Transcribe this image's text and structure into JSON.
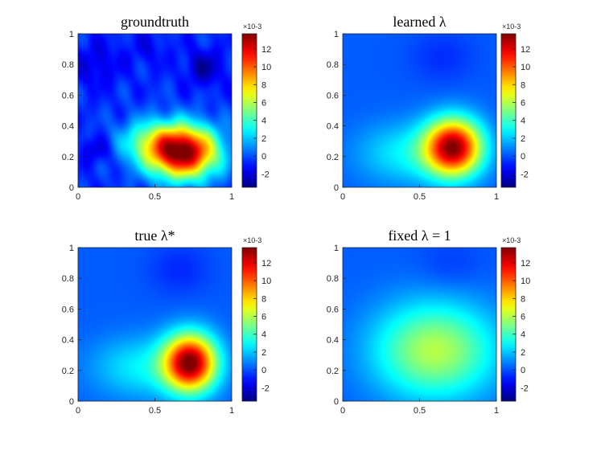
{
  "chart_data": [
    {
      "type": "heatmap",
      "title": "groundtruth",
      "xlim": [
        0,
        1
      ],
      "ylim": [
        0,
        1
      ],
      "xticks": [
        "0",
        "0.5",
        "1"
      ],
      "yticks": [
        "0",
        "0.2",
        "0.4",
        "0.6",
        "0.8",
        "1"
      ],
      "colorbar": {
        "min": -0.0035,
        "max": 0.0137,
        "ticks": [
          "-2",
          "0",
          "2",
          "4",
          "6",
          "8",
          "10",
          "12"
        ],
        "exponent": "×10-3",
        "colormap": "jet"
      },
      "field": {
        "peaks": [
          {
            "x": 0.68,
            "y": 0.23,
            "sx": 0.16,
            "sy": 0.12,
            "a": 0.0145
          },
          {
            "x": 0.45,
            "y": 0.3,
            "sx": 0.14,
            "sy": 0.1,
            "a": 0.0035
          },
          {
            "x": 0.82,
            "y": 0.78,
            "sx": 0.08,
            "sy": 0.08,
            "a": -0.0022
          },
          {
            "x": 0.12,
            "y": 0.8,
            "sx": 0.1,
            "sy": 0.1,
            "a": -0.0013
          },
          {
            "x": 0.12,
            "y": 0.24,
            "sx": 0.07,
            "sy": 0.06,
            "a": -0.0014
          },
          {
            "x": 0.45,
            "y": 0.9,
            "sx": 0.1,
            "sy": 0.08,
            "a": -0.0008
          }
        ],
        "base": -0.0006,
        "texture": 0.0009
      }
    },
    {
      "type": "heatmap",
      "title": "learned λ",
      "xlim": [
        0,
        1
      ],
      "ylim": [
        0,
        1
      ],
      "xticks": [
        "0",
        "0.5",
        "1"
      ],
      "yticks": [
        "0",
        "0.2",
        "0.4",
        "0.6",
        "0.8",
        "1"
      ],
      "colorbar": {
        "min": -0.0035,
        "max": 0.0137,
        "ticks": [
          "-2",
          "0",
          "2",
          "4",
          "6",
          "8",
          "10",
          "12"
        ],
        "exponent": "×10-3",
        "colormap": "jet"
      },
      "field": {
        "peaks": [
          {
            "x": 0.72,
            "y": 0.26,
            "sx": 0.13,
            "sy": 0.13,
            "a": 0.0128
          },
          {
            "x": 0.4,
            "y": 0.22,
            "sx": 0.22,
            "sy": 0.14,
            "a": 0.0025
          },
          {
            "x": 0.65,
            "y": 0.85,
            "sx": 0.15,
            "sy": 0.12,
            "a": -0.0008
          }
        ],
        "base": 0.0002,
        "texture": 0
      }
    },
    {
      "type": "heatmap",
      "title": "true λ*",
      "xlim": [
        0,
        1
      ],
      "ylim": [
        0,
        1
      ],
      "xticks": [
        "0",
        "0.5",
        "1"
      ],
      "yticks": [
        "0",
        "0.2",
        "0.4",
        "0.6",
        "0.8",
        "1"
      ],
      "colorbar": {
        "min": -0.0035,
        "max": 0.0137,
        "ticks": [
          "-2",
          "0",
          "2",
          "4",
          "6",
          "8",
          "10",
          "12"
        ],
        "exponent": "×10-3",
        "colormap": "jet"
      },
      "field": {
        "peaks": [
          {
            "x": 0.73,
            "y": 0.25,
            "sx": 0.12,
            "sy": 0.13,
            "a": 0.0132
          },
          {
            "x": 0.4,
            "y": 0.22,
            "sx": 0.22,
            "sy": 0.14,
            "a": 0.0025
          },
          {
            "x": 0.66,
            "y": 0.86,
            "sx": 0.14,
            "sy": 0.12,
            "a": -0.0009
          }
        ],
        "base": 0.0002,
        "texture": 0
      }
    },
    {
      "type": "heatmap",
      "title": "fixed λ = 1",
      "xlim": [
        0,
        1
      ],
      "ylim": [
        0,
        1
      ],
      "xticks": [
        "0",
        "0.5",
        "1"
      ],
      "yticks": [
        "0",
        "0.2",
        "0.4",
        "0.6",
        "0.8",
        "1"
      ],
      "colorbar": {
        "min": -0.0035,
        "max": 0.0137,
        "ticks": [
          "-2",
          "0",
          "2",
          "4",
          "6",
          "8",
          "10",
          "12"
        ],
        "exponent": "×10-3",
        "colormap": "jet"
      },
      "field": {
        "peaks": [
          {
            "x": 0.6,
            "y": 0.33,
            "sx": 0.28,
            "sy": 0.22,
            "a": 0.0058
          },
          {
            "x": 0.7,
            "y": 0.88,
            "sx": 0.15,
            "sy": 0.12,
            "a": -0.0006
          }
        ],
        "base": 0.0002,
        "texture": 0
      }
    }
  ]
}
